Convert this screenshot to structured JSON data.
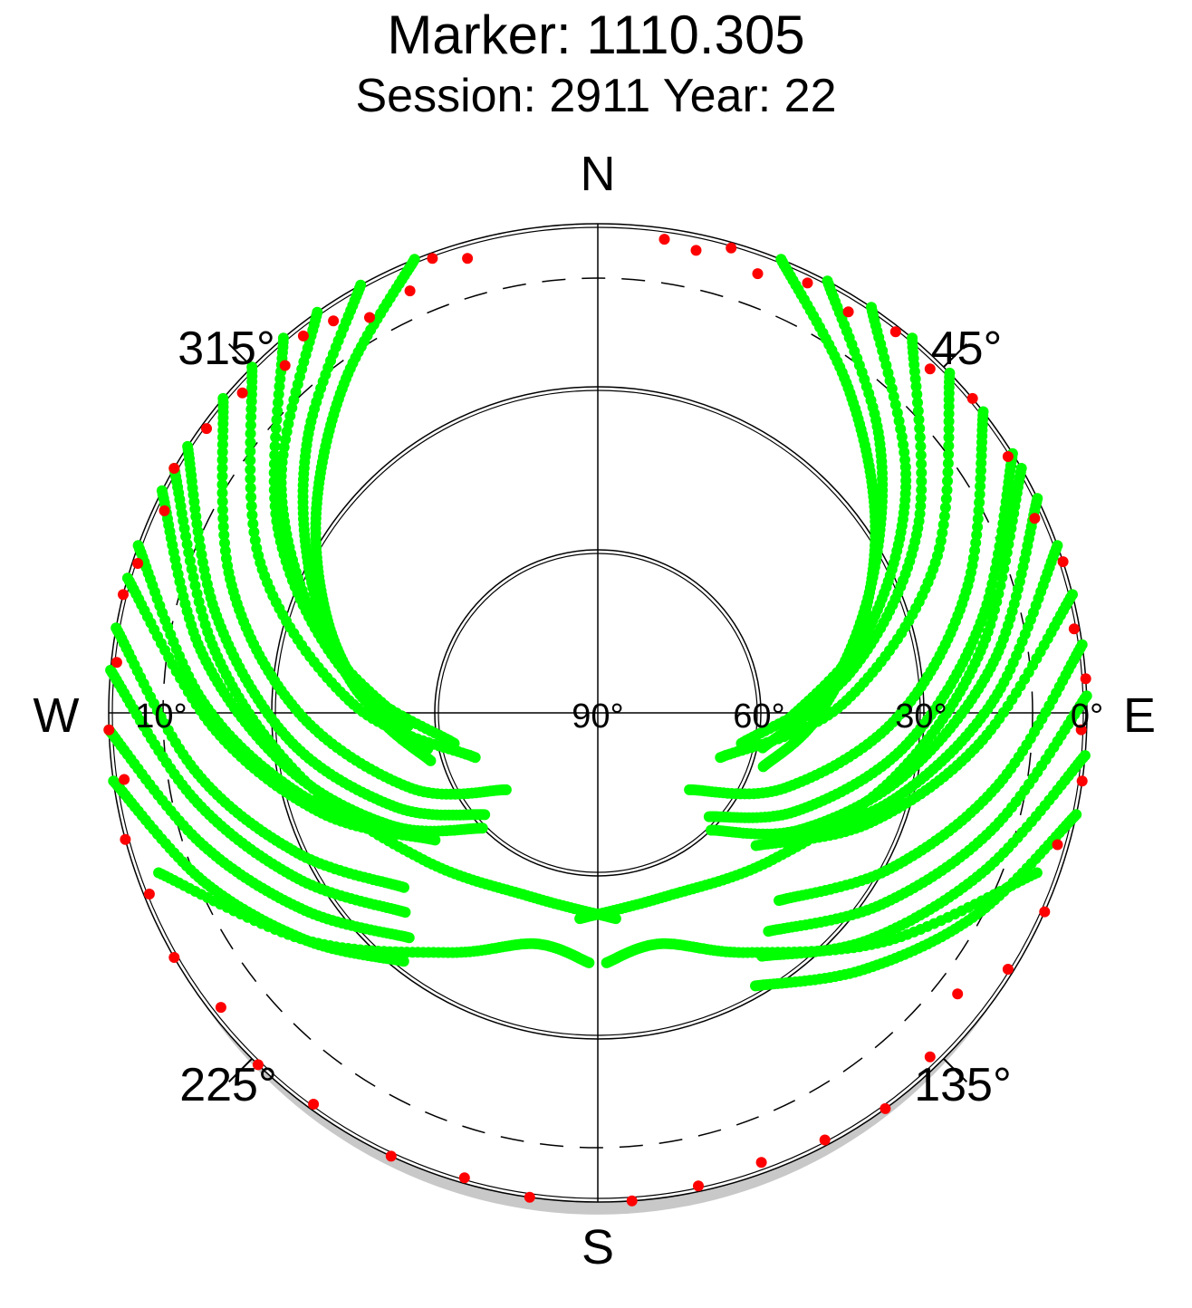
{
  "chart_data": {
    "type": "scatter",
    "projection": "polar-skyplot",
    "title": "Marker: 1110.305",
    "subtitle": "Session: 2911 Year: 22",
    "directions": {
      "north": "N",
      "east": "E",
      "south": "S",
      "west": "W"
    },
    "azimuth_labels": [
      "45°",
      "135°",
      "225°",
      "315°"
    ],
    "elevation_labels": [
      "90°",
      "60°",
      "30°",
      "0°",
      "10°"
    ],
    "elevation_range": [
      0,
      90
    ],
    "cutoff_elevation": 10,
    "colors": {
      "tracked": "#00ff00",
      "low_elevation": "#ff0000",
      "grid": "#000000",
      "horizon_mask": "#c8c8c8"
    },
    "tracks": [
      {
        "az": [
          338,
          323,
          306,
          288,
          270,
          254
        ],
        "el": [
          0,
          13,
          26,
          38,
          49,
          58
        ]
      },
      {
        "az": [
          331,
          314,
          296,
          276,
          258
        ],
        "el": [
          0,
          16,
          31,
          45,
          58
        ]
      },
      {
        "az": [
          325,
          306,
          286,
          266
        ],
        "el": [
          0,
          18,
          37,
          55
        ]
      },
      {
        "az": [
          320,
          300,
          279,
          258
        ],
        "el": [
          0,
          22,
          43,
          63
        ]
      },
      {
        "az": [
          315,
          294,
          272,
          250
        ],
        "el": [
          0,
          22,
          45,
          66
        ]
      },
      {
        "az": [
          310,
          290,
          270,
          248,
          230
        ],
        "el": [
          0,
          18,
          35,
          53,
          68
        ]
      },
      {
        "az": [
          303,
          285,
          265,
          245,
          228
        ],
        "el": [
          0,
          17,
          33,
          49,
          62
        ]
      },
      {
        "az": [
          297,
          279,
          260,
          241,
          225
        ],
        "el": [
          0,
          16,
          32,
          47,
          60
        ]
      },
      {
        "az": [
          290,
          272,
          255,
          238
        ],
        "el": [
          0,
          17,
          33,
          48
        ]
      },
      {
        "az": [
          286,
          268,
          250,
          232
        ],
        "el": [
          0,
          19,
          36,
          52
        ]
      },
      {
        "az": [
          280,
          262,
          245,
          228
        ],
        "el": [
          0,
          15,
          29,
          42
        ]
      },
      {
        "az": [
          275,
          258,
          241,
          224
        ],
        "el": [
          0,
          14,
          27,
          39
        ]
      },
      {
        "az": [
          268,
          252,
          236,
          220
        ],
        "el": [
          0,
          13,
          25,
          36
        ]
      },
      {
        "az": [
          262,
          247,
          232,
          218
        ],
        "el": [
          0,
          11,
          22,
          32
        ]
      },
      {
        "az": [
          22,
          37,
          54,
          72,
          92,
          108
        ],
        "el": [
          0,
          14,
          27,
          39,
          50,
          58
        ]
      },
      {
        "az": [
          28,
          45,
          63,
          84,
          102
        ],
        "el": [
          0,
          17,
          33,
          47,
          59
        ]
      },
      {
        "az": [
          34,
          53,
          73,
          94
        ],
        "el": [
          0,
          19,
          38,
          56
        ]
      },
      {
        "az": [
          40,
          60,
          81,
          102
        ],
        "el": [
          0,
          22,
          43,
          63
        ]
      },
      {
        "az": [
          46,
          66,
          88,
          110
        ],
        "el": [
          0,
          22,
          45,
          66
        ]
      },
      {
        "az": [
          52,
          71,
          91,
          112,
          130
        ],
        "el": [
          0,
          18,
          35,
          53,
          68
        ]
      },
      {
        "az": [
          58,
          76,
          96,
          116,
          133
        ],
        "el": [
          0,
          17,
          33,
          49,
          62
        ]
      },
      {
        "az": [
          64,
          82,
          101,
          120,
          136
        ],
        "el": [
          0,
          16,
          32,
          47,
          60
        ]
      },
      {
        "az": [
          70,
          88,
          106,
          124
        ],
        "el": [
          0,
          17,
          33,
          48
        ]
      },
      {
        "az": [
          76,
          94,
          112,
          130
        ],
        "el": [
          0,
          19,
          36,
          52
        ]
      },
      {
        "az": [
          82,
          100,
          118,
          136
        ],
        "el": [
          0,
          15,
          29,
          42
        ]
      },
      {
        "az": [
          88,
          106,
          124,
          142
        ],
        "el": [
          0,
          14,
          27,
          39
        ]
      },
      {
        "az": [
          95,
          112,
          130,
          146
        ],
        "el": [
          0,
          13,
          25,
          36
        ]
      },
      {
        "az": [
          102,
          118,
          134,
          150
        ],
        "el": [
          0,
          11,
          22,
          32
        ]
      },
      {
        "az": [
          300,
          280,
          258,
          230,
          200,
          175
        ],
        "el": [
          0,
          18,
          34,
          48,
          54,
          52
        ]
      },
      {
        "az": [
          60,
          80,
          102,
          130,
          160,
          185
        ],
        "el": [
          0,
          18,
          34,
          48,
          54,
          52
        ]
      },
      {
        "az": [
          250,
          232,
          212,
          195,
          182
        ],
        "el": [
          4,
          22,
          38,
          46,
          44
        ]
      },
      {
        "az": [
          110,
          128,
          148,
          165,
          178
        ],
        "el": [
          4,
          22,
          38,
          46,
          44
        ]
      }
    ],
    "low_elevation_points": [
      {
        "az": 322,
        "el": 2
      },
      {
        "az": 326,
        "el": 3
      },
      {
        "az": 318,
        "el": 4
      },
      {
        "az": 340,
        "el": 1
      },
      {
        "az": 344,
        "el": 3
      },
      {
        "az": 336,
        "el": 5
      },
      {
        "az": 330,
        "el": 6
      },
      {
        "az": 312,
        "el": 2
      },
      {
        "az": 306,
        "el": 1
      },
      {
        "az": 300,
        "el": 0
      },
      {
        "az": 295,
        "el": 2
      },
      {
        "az": 288,
        "el": 1
      },
      {
        "az": 284,
        "el": 0
      },
      {
        "az": 276,
        "el": 1
      },
      {
        "az": 268,
        "el": 0
      },
      {
        "az": 262,
        "el": 2
      },
      {
        "az": 255,
        "el": 0
      },
      {
        "az": 248,
        "el": 1
      },
      {
        "az": 240,
        "el": 0
      },
      {
        "az": 232,
        "el": 2
      },
      {
        "az": 224,
        "el": 0
      },
      {
        "az": 216,
        "el": 1
      },
      {
        "az": 205,
        "el": 0
      },
      {
        "az": 196,
        "el": 1
      },
      {
        "az": 188,
        "el": 0
      },
      {
        "az": 176,
        "el": 0
      },
      {
        "az": 168,
        "el": 1
      },
      {
        "az": 160,
        "el": 2
      },
      {
        "az": 152,
        "el": 1
      },
      {
        "az": 144,
        "el": 0
      },
      {
        "az": 136,
        "el": 2
      },
      {
        "az": 128,
        "el": 6
      },
      {
        "az": 122,
        "el": 1
      },
      {
        "az": 114,
        "el": 0
      },
      {
        "az": 106,
        "el": 2
      },
      {
        "az": 98,
        "el": 0
      },
      {
        "az": 92,
        "el": 1
      },
      {
        "az": 86,
        "el": 0
      },
      {
        "az": 80,
        "el": 1
      },
      {
        "az": 72,
        "el": 0
      },
      {
        "az": 66,
        "el": 2
      },
      {
        "az": 58,
        "el": 1
      },
      {
        "az": 50,
        "el": 0
      },
      {
        "az": 44,
        "el": 2
      },
      {
        "az": 38,
        "el": 1
      },
      {
        "az": 32,
        "el": 3
      },
      {
        "az": 26,
        "el": 2
      },
      {
        "az": 20,
        "el": 4
      },
      {
        "az": 16,
        "el": 1
      },
      {
        "az": 12,
        "el": 3
      },
      {
        "az": 8,
        "el": 2
      }
    ]
  }
}
